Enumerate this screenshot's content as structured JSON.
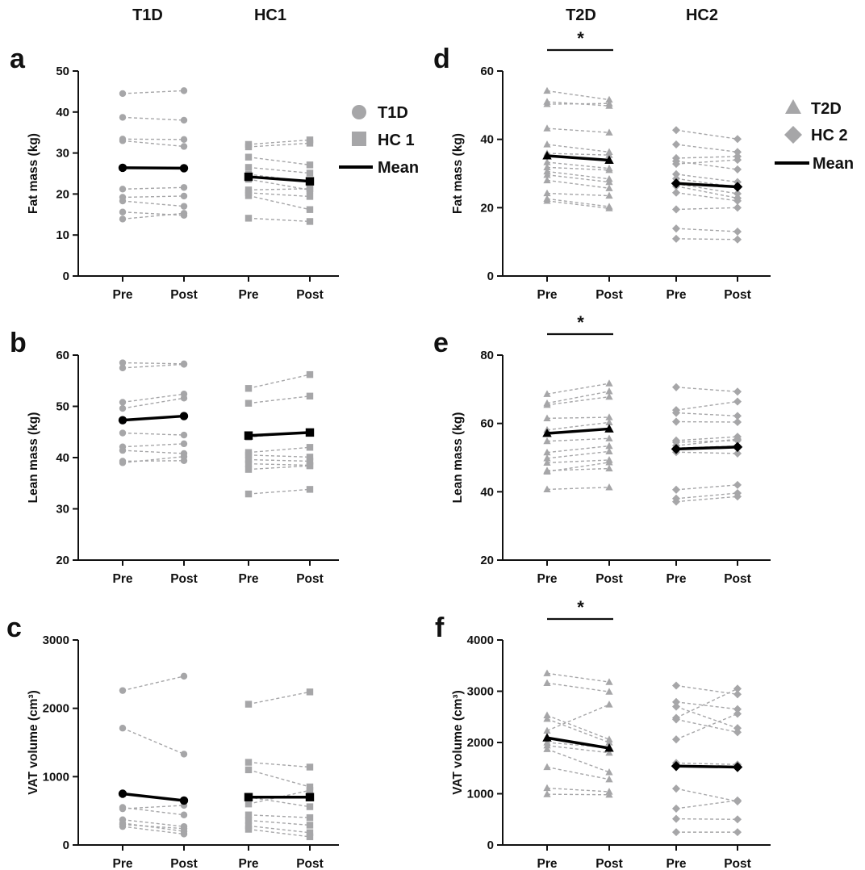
{
  "group_headers": {
    "left": [
      "T1D",
      "HC1"
    ],
    "right": [
      "T2D",
      "HC2"
    ]
  },
  "legends": {
    "left": [
      {
        "label": "T1D",
        "marker": "circle"
      },
      {
        "label": "HC 1",
        "marker": "square"
      },
      {
        "label": "Mean",
        "marker": "line"
      }
    ],
    "right": [
      {
        "label": "T2D",
        "marker": "triangle"
      },
      {
        "label": "HC 2",
        "marker": "diamond"
      },
      {
        "label": "Mean",
        "marker": "line"
      }
    ]
  },
  "colors": {
    "individual": "#a6a6a8",
    "mean": "#000000",
    "axis": "#111111"
  },
  "chart_data": [
    {
      "panel": "a",
      "type": "line",
      "ylabel": "Fat mass (kg)",
      "ylim": [
        0,
        50
      ],
      "yticks": [
        0,
        10,
        20,
        30,
        40,
        50
      ],
      "xticklabels": [
        "Pre",
        "Post",
        "Pre",
        "Post"
      ],
      "groups": [
        {
          "name": "T1D",
          "marker": "circle",
          "pairs": [
            [
              44.5,
              45.2
            ],
            [
              38.7,
              38.0
            ],
            [
              33.4,
              33.3
            ],
            [
              33.0,
              31.6
            ],
            [
              21.2,
              21.6
            ],
            [
              19.2,
              19.5
            ],
            [
              18.3,
              17.0
            ],
            [
              15.6,
              14.8
            ],
            [
              13.9,
              15.3
            ]
          ],
          "mean": [
            26.4,
            26.3
          ]
        },
        {
          "name": "HC 1",
          "marker": "square",
          "pairs": [
            [
              32.1,
              33.2
            ],
            [
              31.5,
              32.4
            ],
            [
              29.0,
              27.1
            ],
            [
              26.5,
              25.1
            ],
            [
              24.8,
              23.0
            ],
            [
              23.6,
              21.0
            ],
            [
              21.0,
              21.3
            ],
            [
              20.3,
              19.4
            ],
            [
              19.6,
              16.2
            ],
            [
              14.1,
              13.3
            ]
          ],
          "mean": [
            24.2,
            23.1
          ]
        }
      ],
      "significance": null
    },
    {
      "panel": "b",
      "type": "line",
      "ylabel": "Lean mass (kg)",
      "ylim": [
        20,
        60
      ],
      "yticks": [
        20,
        30,
        40,
        50,
        60
      ],
      "xticklabels": [
        "Pre",
        "Post",
        "Pre",
        "Post"
      ],
      "groups": [
        {
          "name": "T1D",
          "marker": "circle",
          "pairs": [
            [
              58.5,
              58.3
            ],
            [
              57.5,
              58.2
            ],
            [
              50.8,
              52.4
            ],
            [
              49.6,
              51.6
            ],
            [
              44.8,
              44.4
            ],
            [
              42.1,
              42.7
            ],
            [
              41.4,
              40.8
            ],
            [
              39.3,
              39.4
            ],
            [
              39.0,
              40.2
            ]
          ],
          "mean": [
            47.3,
            48.1
          ]
        },
        {
          "name": "HC 1",
          "marker": "square",
          "pairs": [
            [
              53.5,
              56.2
            ],
            [
              50.6,
              52.0
            ],
            [
              41.0,
              42.0
            ],
            [
              40.5,
              40.1
            ],
            [
              39.6,
              39.3
            ],
            [
              38.8,
              38.5
            ],
            [
              37.7,
              38.4
            ],
            [
              32.9,
              33.8
            ],
            [
              44.0,
              45.0
            ]
          ],
          "mean": [
            44.3,
            44.9
          ]
        }
      ],
      "significance": null
    },
    {
      "panel": "c",
      "type": "line",
      "ylabel": "VAT volume (cm³)",
      "ylim": [
        0,
        3000
      ],
      "yticks": [
        0,
        1000,
        2000,
        3000
      ],
      "xticklabels": [
        "Pre",
        "Post",
        "Pre",
        "Post"
      ],
      "groups": [
        {
          "name": "T1D",
          "marker": "circle",
          "pairs": [
            [
              2260,
              2470
            ],
            [
              1710,
              1330
            ],
            [
              550,
              440
            ],
            [
              530,
              580
            ],
            [
              370,
              270
            ],
            [
              320,
              200
            ],
            [
              270,
              160
            ],
            [
              300,
              240
            ]
          ],
          "mean": [
            750,
            650
          ]
        },
        {
          "name": "HC 1",
          "marker": "square",
          "pairs": [
            [
              2060,
              2240
            ],
            [
              1210,
              1140
            ],
            [
              1100,
              850
            ],
            [
              700,
              560
            ],
            [
              440,
              400
            ],
            [
              360,
              290
            ],
            [
              280,
              180
            ],
            [
              230,
              120
            ],
            [
              600,
              800
            ]
          ],
          "mean": [
            700,
            700
          ]
        }
      ],
      "significance": null
    },
    {
      "panel": "d",
      "type": "line",
      "ylabel": "Fat mass (kg)",
      "ylim": [
        0,
        60
      ],
      "yticks": [
        0,
        20,
        40,
        60
      ],
      "xticklabels": [
        "Pre",
        "Post",
        "Pre",
        "Post"
      ],
      "groups": [
        {
          "name": "T2D",
          "marker": "triangle",
          "pairs": [
            [
              54.2,
              51.6
            ],
            [
              51.0,
              49.8
            ],
            [
              50.3,
              50.5
            ],
            [
              43.2,
              42.0
            ],
            [
              38.5,
              36.3
            ],
            [
              35.9,
              35.4
            ],
            [
              33.3,
              31.5
            ],
            [
              31.8,
              31.0
            ],
            [
              30.6,
              28.4
            ],
            [
              29.6,
              27.5
            ],
            [
              28.0,
              25.7
            ],
            [
              24.2,
              23.5
            ],
            [
              22.6,
              20.3
            ],
            [
              22.0,
              19.8
            ]
          ],
          "mean": [
            35.2,
            33.9
          ]
        },
        {
          "name": "HC 2",
          "marker": "diamond",
          "pairs": [
            [
              42.7,
              40.1
            ],
            [
              38.5,
              36.3
            ],
            [
              34.5,
              35.0
            ],
            [
              32.8,
              34.0
            ],
            [
              29.8,
              27.5
            ],
            [
              28.5,
              26.0
            ],
            [
              27.0,
              24.1
            ],
            [
              26.3,
              22.8
            ],
            [
              24.4,
              22.0
            ],
            [
              19.5,
              20.0
            ],
            [
              13.9,
              13.0
            ],
            [
              10.9,
              10.7
            ],
            [
              33.6,
              31.2
            ]
          ],
          "mean": [
            27.1,
            26.1
          ]
        }
      ],
      "significance": {
        "label": "*",
        "groups": [
          "T2D"
        ]
      }
    },
    {
      "panel": "e",
      "type": "line",
      "ylabel": "Lean mass (kg)",
      "ylim": [
        20,
        80
      ],
      "yticks": [
        20,
        40,
        60,
        80
      ],
      "xticklabels": [
        "Pre",
        "Post",
        "Pre",
        "Post"
      ],
      "groups": [
        {
          "name": "T2D",
          "marker": "triangle",
          "pairs": [
            [
              68.6,
              71.7
            ],
            [
              65.9,
              69.4
            ],
            [
              65.4,
              67.8
            ],
            [
              61.5,
              61.8
            ],
            [
              58.1,
              60.3
            ],
            [
              57.3,
              58.4
            ],
            [
              54.8,
              55.6
            ],
            [
              51.5,
              53.4
            ],
            [
              49.8,
              51.8
            ],
            [
              48.5,
              49.3
            ],
            [
              46.2,
              46.8
            ],
            [
              45.9,
              48.6
            ],
            [
              40.7,
              41.3
            ]
          ],
          "mean": [
            57.1,
            58.4
          ]
        },
        {
          "name": "HC 2",
          "marker": "diamond",
          "pairs": [
            [
              70.6,
              69.3
            ],
            [
              63.9,
              66.4
            ],
            [
              63.1,
              62.2
            ],
            [
              60.5,
              60.4
            ],
            [
              55.0,
              56.1
            ],
            [
              53.5,
              55.4
            ],
            [
              52.8,
              53.4
            ],
            [
              51.6,
              51.2
            ],
            [
              40.6,
              42.0
            ],
            [
              38.0,
              39.6
            ],
            [
              37.1,
              38.6
            ],
            [
              54.5,
              55.0
            ]
          ],
          "mean": [
            52.5,
            53.1
          ]
        }
      ],
      "significance": {
        "label": "*",
        "groups": [
          "T2D"
        ]
      }
    },
    {
      "panel": "f",
      "type": "line",
      "ylabel": "VAT volume (cm³)",
      "ylim": [
        0,
        4000
      ],
      "yticks": [
        0,
        1000,
        2000,
        3000,
        4000
      ],
      "xticklabels": [
        "Pre",
        "Post",
        "Pre",
        "Post"
      ],
      "groups": [
        {
          "name": "T2D",
          "marker": "triangle",
          "pairs": [
            [
              3350,
              3180
            ],
            [
              3160,
              2990
            ],
            [
              2530,
              2060
            ],
            [
              2460,
              2000
            ],
            [
              2230,
              2740
            ],
            [
              2000,
              1900
            ],
            [
              1940,
              1800
            ],
            [
              1870,
              1420
            ],
            [
              1520,
              1280
            ],
            [
              1110,
              1040
            ],
            [
              990,
              980
            ]
          ],
          "mean": [
            2090,
            1890
          ]
        },
        {
          "name": "HC 2",
          "marker": "diamond",
          "pairs": [
            [
              3110,
              2940
            ],
            [
              2790,
              2650
            ],
            [
              2700,
              2280
            ],
            [
              2480,
              3050
            ],
            [
              2450,
              2200
            ],
            [
              2060,
              2560
            ],
            [
              1600,
              1570
            ],
            [
              1100,
              850
            ],
            [
              710,
              870
            ],
            [
              510,
              500
            ],
            [
              250,
              250
            ]
          ],
          "mean": [
            1540,
            1520
          ]
        }
      ],
      "significance": {
        "label": "*",
        "groups": [
          "T2D"
        ]
      }
    }
  ]
}
